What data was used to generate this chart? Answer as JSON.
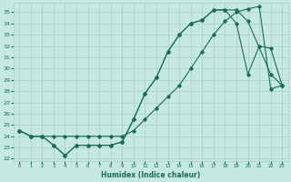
{
  "xlabel": "Humidex (Indice chaleur)",
  "ylabel": "",
  "xlim": [
    -0.5,
    23.5
  ],
  "ylim": [
    21.8,
    35.8
  ],
  "yticks": [
    22,
    23,
    24,
    25,
    26,
    27,
    28,
    29,
    30,
    31,
    32,
    33,
    34,
    35
  ],
  "xticks": [
    0,
    1,
    2,
    3,
    4,
    5,
    6,
    7,
    8,
    9,
    10,
    11,
    12,
    13,
    14,
    15,
    16,
    17,
    18,
    19,
    20,
    21,
    22,
    23
  ],
  "bg_color": "#c5e8e0",
  "grid_color": "#aacfc8",
  "line_color": "#1a6b5a",
  "series1_x": [
    0,
    1,
    2,
    3,
    4,
    5,
    6,
    7,
    8,
    9,
    10,
    11,
    12,
    13,
    14,
    15,
    16,
    17,
    18,
    19,
    20,
    21,
    22,
    23
  ],
  "series1_y": [
    24.5,
    24.0,
    24.0,
    23.2,
    22.3,
    23.2,
    23.2,
    23.2,
    23.2,
    23.5,
    25.5,
    27.8,
    29.2,
    31.5,
    33.0,
    34.0,
    34.3,
    35.2,
    35.2,
    34.0,
    29.5,
    32.0,
    31.8,
    28.5
  ],
  "series2_x": [
    0,
    1,
    2,
    3,
    4,
    5,
    6,
    7,
    8,
    9,
    10,
    11,
    12,
    13,
    14,
    15,
    16,
    17,
    18,
    19,
    20,
    21,
    22,
    23
  ],
  "series2_y": [
    24.5,
    24.0,
    24.0,
    24.0,
    24.0,
    24.0,
    24.0,
    24.0,
    24.0,
    24.0,
    24.5,
    25.5,
    26.5,
    27.5,
    28.5,
    30.0,
    31.5,
    33.0,
    34.2,
    35.0,
    35.3,
    35.5,
    28.2,
    28.5
  ],
  "series3_x": [
    0,
    1,
    2,
    3,
    4,
    5,
    6,
    7,
    8,
    9,
    10,
    11,
    12,
    13,
    14,
    15,
    16,
    17,
    18,
    19,
    20,
    22,
    23
  ],
  "series3_y": [
    24.5,
    24.0,
    24.0,
    23.2,
    22.3,
    23.2,
    23.2,
    23.2,
    23.2,
    23.5,
    25.5,
    27.8,
    29.2,
    31.5,
    33.0,
    34.0,
    34.3,
    35.2,
    35.2,
    35.2,
    34.2,
    29.5,
    28.5
  ]
}
